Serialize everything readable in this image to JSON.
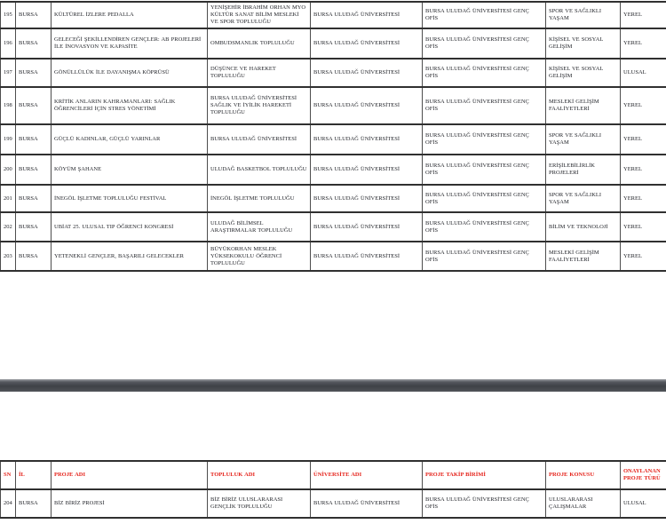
{
  "document": {
    "description_colors": {
      "page_background": "#ffffff",
      "body_text": "#1e2026",
      "header_text": "#e5231b",
      "separator_bar": "#3f4247",
      "table_border": "#303030"
    }
  },
  "table_page1": {
    "rows": [
      [
        "195",
        "BURSA",
        "KÜLTÜREL İZLERE PEDALLA",
        "YENİŞEHİR İBRAHİM ORHAN MYO KÜLTÜR SANAT BİLİM MESLEKİ VE SPOR TOPLULUĞU",
        "BURSA ULUDAĞ ÜNİVERSİTESİ",
        "BURSA ULUDAĞ ÜNİVERSİTESİ GENÇ OFİS",
        "SPOR VE SAĞLIKLI YAŞAM",
        "YEREL"
      ],
      [
        "196",
        "BURSA",
        "GELECEĞİ ŞEKİLLENDİREN GENÇLER: AB PROJELERİ İLE İNOVASYON VE KAPASİTE",
        "OMBUDSMANLIK TOPLULUĞU",
        "BURSA ULUDAĞ ÜNİVERSİTESİ",
        "BURSA ULUDAĞ ÜNİVERSİTESİ GENÇ OFİS",
        "KİŞİSEL VE SOSYAL GELİŞİM",
        "YEREL"
      ],
      [
        "197",
        "BURSA",
        "GÖNÜLLÜLÜK İLE DAYANIŞMA KÖPRÜSÜ",
        "DÜŞÜNCE VE HAREKET TOPLULUĞU",
        "BURSA ULUDAĞ ÜNİVERSİTESİ",
        "BURSA ULUDAĞ ÜNİVERSİTESİ GENÇ OFİS",
        "KİŞİSEL VE SOSYAL GELİŞİM",
        "ULUSAL"
      ],
      [
        "198",
        "BURSA",
        "KRİTİK ANLARIN KAHRAMANLARI: SAĞLIK ÖĞRENCİLERİ İÇİN STRES YÖNETİMİ",
        "BURSA ULUDAĞ ÜNİVERSİTESİ SAĞLIK VE İYİLİK HAREKETİ TOPLULUĞU",
        "BURSA ULUDAĞ ÜNİVERSİTESİ",
        "BURSA ULUDAĞ ÜNİVERSİTESİ GENÇ OFİS",
        "MESLEKİ GELİŞİM FAALİYETLERİ",
        "YEREL"
      ],
      [
        "199",
        "BURSA",
        "GÜÇLÜ KADINLAR, GÜÇLÜ YARINLAR",
        "BURSA ULUDAĞ ÜNİVERSİTESİ",
        "BURSA ULUDAĞ ÜNİVERSİTESİ",
        "BURSA ULUDAĞ ÜNİVERSİTESİ GENÇ OFİS",
        "SPOR VE SAĞLIKLI YAŞAM",
        "YEREL"
      ],
      [
        "200",
        "BURSA",
        "KÖYÜM ŞAHANE",
        "ULUDAĞ BASKETBOL TOPLULUĞU",
        "BURSA ULUDAĞ ÜNİVERSİTESİ",
        "BURSA ULUDAĞ ÜNİVERSİTESİ GENÇ OFİS",
        "ERİŞİLEBİLİRLİK PROJELERİ",
        "YEREL"
      ],
      [
        "201",
        "BURSA",
        "İNEGÖL İŞLETME TOPLULUĞU FESTİVAL",
        "İNEGÖL İŞLETME TOPLULUĞU",
        "BURSA ULUDAĞ ÜNİVERSİTESİ",
        "BURSA ULUDAĞ ÜNİVERSİTESİ GENÇ OFİS",
        "SPOR VE SAĞLIKLI YAŞAM",
        "YEREL"
      ],
      [
        "202",
        "BURSA",
        "UBİAT 25. ULUSAL TIP ÖĞRENCİ KONGRESİ",
        "ULUDAĞ BİLİMSEL ARAŞTIRMALAR TOPLULUĞU",
        "BURSA ULUDAĞ ÜNİVERSİTESİ",
        "BURSA ULUDAĞ ÜNİVERSİTESİ GENÇ OFİS",
        "BİLİM VE TEKNOLOJİ",
        "YEREL"
      ],
      [
        "203",
        "BURSA",
        "YETENEKLİ GENÇLER, BAŞARILI GELECEKLER",
        "BÜYÜKORHAN MESLEK YÜKSEKOKULU ÖĞRENCİ TOPLULUĞU",
        "BURSA ULUDAĞ ÜNİVERSİTESİ",
        "BURSA ULUDAĞ ÜNİVERSİTESİ GENÇ OFİS",
        "MESLEKİ GELİŞİM FAALİYETLERİ",
        "YEREL"
      ]
    ]
  },
  "table_page2": {
    "columns": [
      "SN",
      "İL",
      "PROJE ADI",
      "TOPLULUK ADI",
      "ÜNİVERSİTE ADI",
      "PROJE TAKİP BİRİMİ",
      "PROJE KONUSU",
      "ONAYLANAN PROJE TÜRÜ"
    ],
    "rows": [
      [
        "204",
        "BURSA",
        "BİZ BİRİZ PROJESİ",
        "BİZ BİRİZ ULUSLARARASI GENÇLİK TOPLULUĞU",
        "BURSA ULUDAĞ ÜNİVERSİTESİ",
        "BURSA ULUDAĞ ÜNİVERSİTESİ GENÇ OFİS",
        "ULUSLARARASI ÇALIŞMALAR",
        "ULUSAL"
      ]
    ]
  }
}
